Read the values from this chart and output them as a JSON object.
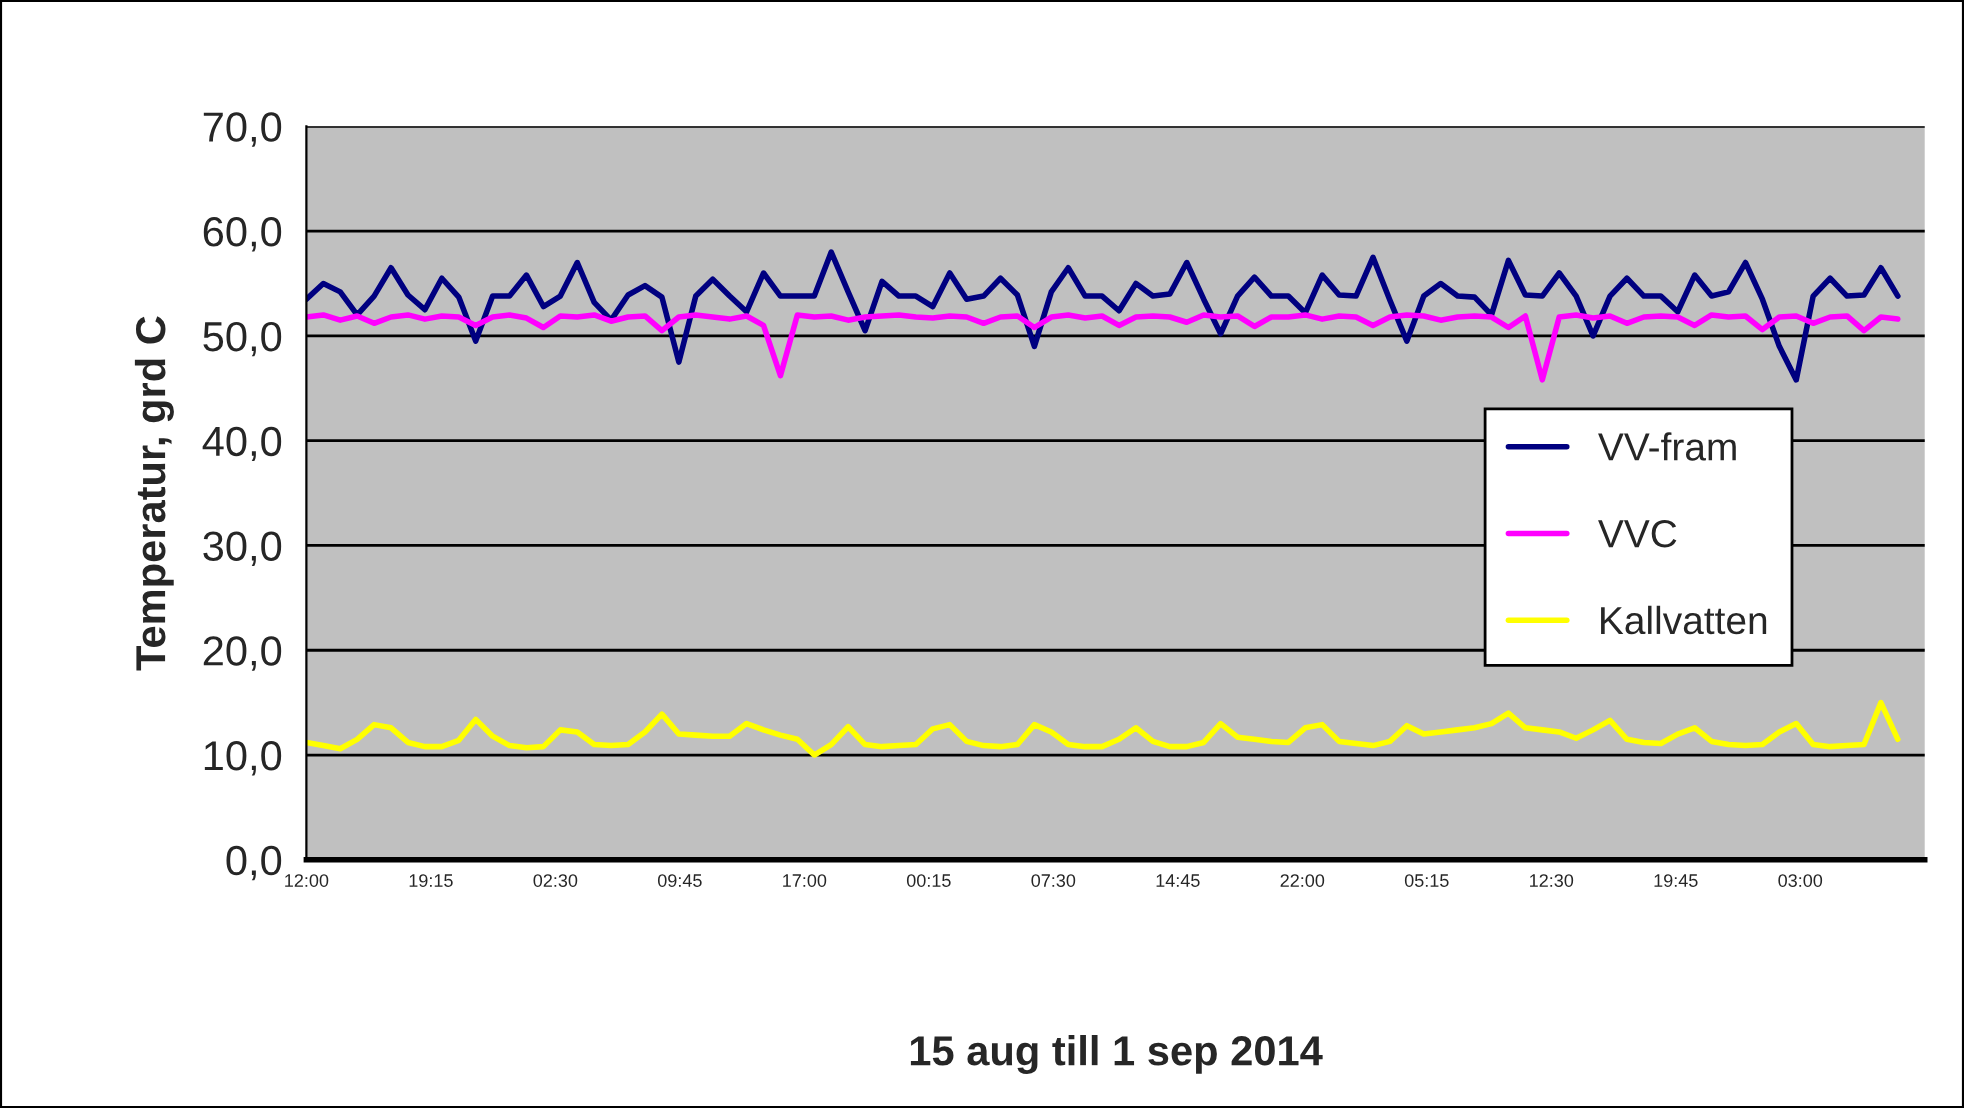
{
  "chart_data": {
    "type": "line",
    "xlabel": "15 aug till 1 sep 2014",
    "ylabel": "Temperatur, grd C",
    "x": [
      "2014-08-15T12:00",
      "2014-08-15T16:15",
      "2014-08-15T20:30",
      "2014-08-16T00:45",
      "2014-08-16T05:00",
      "2014-08-16T09:15",
      "2014-08-16T13:30",
      "2014-08-16T17:45",
      "2014-08-16T22:00",
      "2014-08-17T02:15",
      "2014-08-17T06:30",
      "2014-08-17T10:45",
      "2014-08-17T15:00",
      "2014-08-17T19:15",
      "2014-08-17T23:30",
      "2014-08-18T03:45",
      "2014-08-18T08:00",
      "2014-08-18T12:15",
      "2014-08-18T16:30",
      "2014-08-18T20:45",
      "2014-08-19T01:00",
      "2014-08-19T05:15",
      "2014-08-19T09:30",
      "2014-08-19T13:45",
      "2014-08-19T18:00",
      "2014-08-19T22:15",
      "2014-08-20T02:30",
      "2014-08-20T06:45",
      "2014-08-20T11:00",
      "2014-08-20T15:15",
      "2014-08-20T19:30",
      "2014-08-20T23:45",
      "2014-08-21T04:00",
      "2014-08-21T08:15",
      "2014-08-21T12:30",
      "2014-08-21T16:45",
      "2014-08-21T21:00",
      "2014-08-22T01:15",
      "2014-08-22T05:30",
      "2014-08-22T09:45",
      "2014-08-22T14:00",
      "2014-08-22T18:15",
      "2014-08-22T22:30",
      "2014-08-23T02:45",
      "2014-08-23T07:00",
      "2014-08-23T11:15",
      "2014-08-23T15:30",
      "2014-08-23T19:45",
      "2014-08-24T00:00",
      "2014-08-24T04:15",
      "2014-08-24T08:30",
      "2014-08-24T12:45",
      "2014-08-24T17:00",
      "2014-08-24T21:15",
      "2014-08-25T01:30",
      "2014-08-25T05:45",
      "2014-08-25T10:00",
      "2014-08-25T14:15",
      "2014-08-25T18:30",
      "2014-08-25T22:45",
      "2014-08-26T03:00",
      "2014-08-26T07:15",
      "2014-08-26T11:30",
      "2014-08-26T15:45",
      "2014-08-26T20:00",
      "2014-08-27T00:15",
      "2014-08-27T04:30",
      "2014-08-27T08:45",
      "2014-08-27T13:00",
      "2014-08-27T17:15",
      "2014-08-27T21:30",
      "2014-08-28T01:45",
      "2014-08-28T06:00",
      "2014-08-28T10:15",
      "2014-08-28T14:30",
      "2014-08-28T18:45",
      "2014-08-28T23:00",
      "2014-08-29T03:15",
      "2014-08-29T07:30",
      "2014-08-29T11:45",
      "2014-08-29T16:00",
      "2014-08-29T20:15",
      "2014-08-30T00:30",
      "2014-08-30T04:45",
      "2014-08-30T09:00",
      "2014-08-30T13:15",
      "2014-08-30T17:30",
      "2014-08-30T21:45",
      "2014-08-31T02:00",
      "2014-08-31T06:15",
      "2014-08-31T10:30",
      "2014-08-31T14:45",
      "2014-08-31T19:00",
      "2014-08-31T23:15",
      "2014-09-01T03:30"
    ],
    "series": [
      {
        "name": "VV-fram",
        "color": "#000080",
        "values": [
          53.5,
          55.0,
          54.2,
          52.0,
          53.8,
          56.5,
          53.9,
          52.5,
          55.5,
          53.7,
          49.5,
          53.8,
          53.8,
          55.8,
          52.8,
          53.8,
          57.0,
          53.2,
          51.5,
          53.9,
          54.8,
          53.7,
          47.5,
          53.8,
          55.4,
          53.8,
          52.3,
          56.0,
          53.8,
          53.8,
          53.8,
          58.0,
          54.2,
          50.5,
          55.2,
          53.8,
          53.8,
          52.8,
          56.0,
          53.5,
          53.8,
          55.5,
          53.9,
          49.0,
          54.2,
          56.5,
          53.8,
          53.8,
          52.4,
          55.0,
          53.8,
          54.0,
          57.0,
          53.5,
          50.2,
          53.8,
          55.6,
          53.8,
          53.8,
          52.2,
          55.8,
          53.9,
          53.8,
          57.5,
          53.4,
          49.5,
          53.8,
          55.0,
          53.8,
          53.7,
          52.0,
          57.2,
          53.9,
          53.8,
          56.0,
          53.8,
          50.0,
          53.8,
          55.5,
          53.8,
          53.8,
          52.3,
          55.8,
          53.8,
          54.2,
          57.0,
          53.5,
          49.0,
          45.8,
          53.8,
          55.5,
          53.8,
          53.9,
          56.5,
          53.8
        ]
      },
      {
        "name": "VVC",
        "color": "#ff00ff",
        "values": [
          51.8,
          52.0,
          51.5,
          51.9,
          51.2,
          51.8,
          52.0,
          51.6,
          51.9,
          51.8,
          51.0,
          51.8,
          52.0,
          51.7,
          50.8,
          51.9,
          51.8,
          52.0,
          51.4,
          51.8,
          51.9,
          50.5,
          51.8,
          52.0,
          51.8,
          51.6,
          51.9,
          51.0,
          46.2,
          52.0,
          51.8,
          51.9,
          51.5,
          51.8,
          51.9,
          52.0,
          51.8,
          51.7,
          51.9,
          51.8,
          51.2,
          51.8,
          51.9,
          50.8,
          51.8,
          52.0,
          51.7,
          51.9,
          51.0,
          51.8,
          51.9,
          51.8,
          51.3,
          52.0,
          51.8,
          51.9,
          50.9,
          51.8,
          51.8,
          52.0,
          51.6,
          51.9,
          51.8,
          51.0,
          51.8,
          52.0,
          51.9,
          51.5,
          51.8,
          51.9,
          51.8,
          50.8,
          51.9,
          45.8,
          51.8,
          52.0,
          51.7,
          51.9,
          51.2,
          51.8,
          51.9,
          51.8,
          51.0,
          52.0,
          51.8,
          51.9,
          50.6,
          51.8,
          51.9,
          51.2,
          51.8,
          51.9,
          50.5,
          51.8,
          51.6
        ]
      },
      {
        "name": "Kallvatten",
        "color": "#ffff00",
        "values": [
          11.2,
          10.9,
          10.6,
          11.5,
          12.9,
          12.6,
          11.2,
          10.8,
          10.8,
          11.4,
          13.4,
          11.8,
          10.9,
          10.7,
          10.8,
          12.4,
          12.2,
          11.0,
          10.9,
          11.0,
          12.2,
          13.9,
          12.0,
          11.9,
          11.8,
          11.8,
          13.0,
          12.4,
          11.9,
          11.5,
          10.0,
          11.0,
          12.7,
          11.0,
          10.8,
          10.9,
          11.0,
          12.5,
          12.9,
          11.3,
          10.9,
          10.8,
          11.0,
          12.9,
          12.2,
          11.0,
          10.8,
          10.8,
          11.5,
          12.6,
          11.3,
          10.8,
          10.8,
          11.2,
          13.0,
          11.7,
          11.5,
          11.3,
          11.2,
          12.6,
          12.9,
          11.3,
          11.1,
          10.9,
          11.3,
          12.8,
          12.0,
          12.2,
          12.4,
          12.6,
          13.0,
          14.0,
          12.6,
          12.4,
          12.2,
          11.6,
          12.4,
          13.3,
          11.5,
          11.2,
          11.1,
          12.0,
          12.6,
          11.3,
          11.0,
          10.9,
          11.0,
          12.2,
          13.0,
          11.0,
          10.8,
          10.9,
          11.0,
          15.0,
          11.5
        ]
      }
    ],
    "xlim": [
      "2014-08-15T12:00",
      "2014-09-01T10:15"
    ],
    "xticks": [
      {
        "value": "2014-08-15T12:00",
        "label": "12:00"
      },
      {
        "value": "2014-08-16T19:15",
        "label": "19:15"
      },
      {
        "value": "2014-08-18T02:30",
        "label": "02:30"
      },
      {
        "value": "2014-08-19T09:45",
        "label": "09:45"
      },
      {
        "value": "2014-08-20T17:00",
        "label": "17:00"
      },
      {
        "value": "2014-08-22T00:15",
        "label": "00:15"
      },
      {
        "value": "2014-08-23T07:30",
        "label": "07:30"
      },
      {
        "value": "2014-08-24T14:45",
        "label": "14:45"
      },
      {
        "value": "2014-08-25T22:00",
        "label": "22:00"
      },
      {
        "value": "2014-08-27T05:15",
        "label": "05:15"
      },
      {
        "value": "2014-08-28T12:30",
        "label": "12:30"
      },
      {
        "value": "2014-08-29T19:45",
        "label": "19:45"
      },
      {
        "value": "2014-08-31T03:00",
        "label": "03:00"
      }
    ],
    "ylim": [
      0,
      70
    ],
    "yticks": [
      {
        "value": 0,
        "label": "0,0"
      },
      {
        "value": 10,
        "label": "10,0"
      },
      {
        "value": 20,
        "label": "20,0"
      },
      {
        "value": 30,
        "label": "30,0"
      },
      {
        "value": 40,
        "label": "40,0"
      },
      {
        "value": 50,
        "label": "50,0"
      },
      {
        "value": 60,
        "label": "60,0"
      },
      {
        "value": 70,
        "label": "70,0"
      }
    ],
    "grid": "y",
    "legend": "right",
    "marker": "none",
    "line_style": "solid"
  }
}
